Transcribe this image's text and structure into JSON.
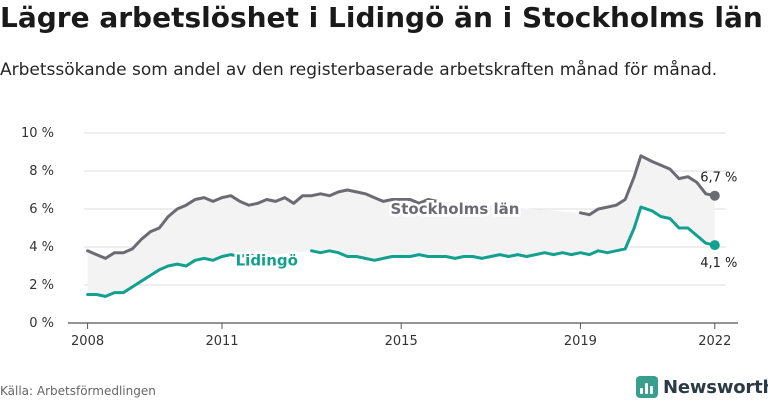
{
  "title": "Lägre arbetslöshet i Lidingö än i Stockholms län",
  "subtitle": "Arbetssökande som andel av den registerbaserade arbetskraften månad för månad.",
  "source": "Källa: Arbetsförmedlingen",
  "brand": {
    "name": "Newsworthy",
    "icon": "bar-chart-icon",
    "color": "#3a9e8f"
  },
  "chart_data": {
    "type": "line",
    "ylim": [
      0,
      10
    ],
    "xlim": [
      2007.92,
      2022.25
    ],
    "y_ticks": [
      {
        "value": 0,
        "label": "0 %"
      },
      {
        "value": 2,
        "label": "2 %"
      },
      {
        "value": 4,
        "label": "4 %"
      },
      {
        "value": 6,
        "label": "6 %"
      },
      {
        "value": 8,
        "label": "8 %"
      },
      {
        "value": 10,
        "label": "10 %"
      }
    ],
    "x_ticks": [
      {
        "value": 2008,
        "label": "2008"
      },
      {
        "value": 2011,
        "label": "2011"
      },
      {
        "value": 2015,
        "label": "2015"
      },
      {
        "value": 2019,
        "label": "2019"
      },
      {
        "value": 2022,
        "label": "2022"
      }
    ],
    "grid": true,
    "series": [
      {
        "name": "Stockholms län",
        "color": "#6b6b72",
        "end_label": "6,7 %",
        "points": [
          [
            2008.0,
            3.8
          ],
          [
            2008.2,
            3.6
          ],
          [
            2008.4,
            3.4
          ],
          [
            2008.6,
            3.7
          ],
          [
            2008.8,
            3.7
          ],
          [
            2009.0,
            3.9
          ],
          [
            2009.2,
            4.4
          ],
          [
            2009.4,
            4.8
          ],
          [
            2009.6,
            5.0
          ],
          [
            2009.8,
            5.6
          ],
          [
            2010.0,
            6.0
          ],
          [
            2010.2,
            6.2
          ],
          [
            2010.4,
            6.5
          ],
          [
            2010.6,
            6.6
          ],
          [
            2010.8,
            6.4
          ],
          [
            2011.0,
            6.6
          ],
          [
            2011.2,
            6.7
          ],
          [
            2011.4,
            6.4
          ],
          [
            2011.6,
            6.2
          ],
          [
            2011.8,
            6.3
          ],
          [
            2012.0,
            6.5
          ],
          [
            2012.2,
            6.4
          ],
          [
            2012.4,
            6.6
          ],
          [
            2012.6,
            6.3
          ],
          [
            2012.8,
            6.7
          ],
          [
            2013.0,
            6.7
          ],
          [
            2013.2,
            6.8
          ],
          [
            2013.4,
            6.7
          ],
          [
            2013.6,
            6.9
          ],
          [
            2013.8,
            7.0
          ],
          [
            2014.0,
            6.9
          ],
          [
            2014.2,
            6.8
          ],
          [
            2014.4,
            6.6
          ],
          [
            2014.6,
            6.4
          ],
          [
            2014.8,
            6.5
          ],
          [
            2015.0,
            6.5
          ],
          [
            2015.2,
            6.5
          ],
          [
            2015.4,
            6.3
          ],
          [
            2015.6,
            6.5
          ],
          [
            2015.8,
            6.4
          ]
        ],
        "points_b": [
          [
            2019.0,
            5.8
          ],
          [
            2019.2,
            5.7
          ],
          [
            2019.4,
            6.0
          ],
          [
            2019.6,
            6.1
          ],
          [
            2019.8,
            6.2
          ],
          [
            2020.0,
            6.5
          ],
          [
            2020.2,
            7.7
          ],
          [
            2020.35,
            8.8
          ],
          [
            2020.6,
            8.5
          ],
          [
            2020.8,
            8.3
          ],
          [
            2021.0,
            8.1
          ],
          [
            2021.2,
            7.6
          ],
          [
            2021.4,
            7.7
          ],
          [
            2021.6,
            7.4
          ],
          [
            2021.8,
            6.8
          ],
          [
            2022.0,
            6.7
          ]
        ]
      },
      {
        "name": "Lidingö",
        "color": "#13a08e",
        "end_label": "4,1 %",
        "points": [
          [
            2008.0,
            1.5
          ],
          [
            2008.2,
            1.5
          ],
          [
            2008.4,
            1.4
          ],
          [
            2008.6,
            1.6
          ],
          [
            2008.8,
            1.6
          ],
          [
            2009.0,
            1.9
          ],
          [
            2009.2,
            2.2
          ],
          [
            2009.4,
            2.5
          ],
          [
            2009.6,
            2.8
          ],
          [
            2009.8,
            3.0
          ],
          [
            2010.0,
            3.1
          ],
          [
            2010.2,
            3.0
          ],
          [
            2010.4,
            3.3
          ],
          [
            2010.6,
            3.4
          ],
          [
            2010.8,
            3.3
          ],
          [
            2011.0,
            3.5
          ],
          [
            2011.2,
            3.6
          ],
          [
            2011.4,
            3.5
          ],
          [
            2011.6,
            3.6
          ],
          [
            2011.8,
            3.5
          ]
        ],
        "points_b": [
          [
            2013.0,
            3.8
          ],
          [
            2013.2,
            3.7
          ],
          [
            2013.4,
            3.8
          ],
          [
            2013.6,
            3.7
          ],
          [
            2013.8,
            3.5
          ],
          [
            2014.0,
            3.5
          ],
          [
            2014.2,
            3.4
          ],
          [
            2014.4,
            3.3
          ],
          [
            2014.6,
            3.4
          ],
          [
            2014.8,
            3.5
          ],
          [
            2015.0,
            3.5
          ],
          [
            2015.2,
            3.5
          ],
          [
            2015.4,
            3.6
          ],
          [
            2015.6,
            3.5
          ],
          [
            2015.8,
            3.5
          ],
          [
            2016.0,
            3.5
          ],
          [
            2016.2,
            3.4
          ],
          [
            2016.4,
            3.5
          ],
          [
            2016.6,
            3.5
          ],
          [
            2016.8,
            3.4
          ],
          [
            2017.0,
            3.5
          ],
          [
            2017.2,
            3.6
          ],
          [
            2017.4,
            3.5
          ],
          [
            2017.6,
            3.6
          ],
          [
            2017.8,
            3.5
          ],
          [
            2018.0,
            3.6
          ],
          [
            2018.2,
            3.7
          ],
          [
            2018.4,
            3.6
          ],
          [
            2018.6,
            3.7
          ],
          [
            2018.8,
            3.6
          ],
          [
            2019.0,
            3.7
          ],
          [
            2019.2,
            3.6
          ],
          [
            2019.4,
            3.8
          ],
          [
            2019.6,
            3.7
          ],
          [
            2019.8,
            3.8
          ],
          [
            2020.0,
            3.9
          ],
          [
            2020.2,
            5.0
          ],
          [
            2020.35,
            6.1
          ],
          [
            2020.6,
            5.9
          ],
          [
            2020.8,
            5.6
          ],
          [
            2021.0,
            5.5
          ],
          [
            2021.2,
            5.0
          ],
          [
            2021.4,
            5.0
          ],
          [
            2021.6,
            4.6
          ],
          [
            2021.8,
            4.2
          ],
          [
            2022.0,
            4.1
          ]
        ]
      }
    ],
    "series_labels": [
      {
        "series": "Stockholms län",
        "x": 2016.2,
        "y": 6.0
      },
      {
        "series": "Lidingö",
        "x": 2012.0,
        "y": 3.3
      }
    ]
  }
}
